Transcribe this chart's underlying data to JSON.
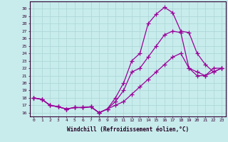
{
  "xlabel": "Windchill (Refroidissement éolien,°C)",
  "background_color": "#c8ecec",
  "line_color": "#990099",
  "grid_color": "#b0d8d8",
  "xlim": [
    -0.5,
    23.5
  ],
  "ylim": [
    15.5,
    31.0
  ],
  "xtick_labels": [
    "0",
    "1",
    "2",
    "3",
    "4",
    "5",
    "6",
    "7",
    "8",
    "9",
    "10",
    "11",
    "12",
    "13",
    "14",
    "15",
    "16",
    "17",
    "18",
    "19",
    "20",
    "21",
    "22",
    "23"
  ],
  "ytick_labels": [
    "16",
    "17",
    "18",
    "19",
    "20",
    "21",
    "22",
    "23",
    "24",
    "25",
    "26",
    "27",
    "28",
    "29",
    "30"
  ],
  "series1_x": [
    0,
    1,
    2,
    3,
    4,
    5,
    6,
    7,
    8,
    9,
    10,
    11,
    12,
    13,
    14,
    15,
    16,
    17,
    18,
    19,
    20,
    21,
    22,
    23
  ],
  "series1_y": [
    18.0,
    17.8,
    17.0,
    16.8,
    16.5,
    16.7,
    16.7,
    16.8,
    16.0,
    16.5,
    18.0,
    20.0,
    23.0,
    24.0,
    28.0,
    29.3,
    30.2,
    29.5,
    27.0,
    26.8,
    24.0,
    22.5,
    21.5,
    22.0
  ],
  "series2_x": [
    0,
    1,
    2,
    3,
    4,
    5,
    6,
    7,
    8,
    9,
    10,
    11,
    12,
    13,
    14,
    15,
    16,
    17,
    18,
    19,
    20,
    21,
    22,
    23
  ],
  "series2_y": [
    18.0,
    17.8,
    17.0,
    16.8,
    16.5,
    16.7,
    16.7,
    16.8,
    16.0,
    16.5,
    17.5,
    19.0,
    21.5,
    22.0,
    23.5,
    25.0,
    26.5,
    27.0,
    26.8,
    22.0,
    21.5,
    21.0,
    22.0,
    22.0
  ],
  "series3_x": [
    0,
    1,
    2,
    3,
    4,
    5,
    6,
    7,
    8,
    9,
    10,
    11,
    12,
    13,
    14,
    15,
    16,
    17,
    18,
    19,
    20,
    21,
    22,
    23
  ],
  "series3_y": [
    18.0,
    17.8,
    17.0,
    16.8,
    16.5,
    16.7,
    16.7,
    16.8,
    16.0,
    16.5,
    17.0,
    17.5,
    18.5,
    19.5,
    20.5,
    21.5,
    22.5,
    23.5,
    24.0,
    22.0,
    21.0,
    21.0,
    21.5,
    22.0
  ]
}
